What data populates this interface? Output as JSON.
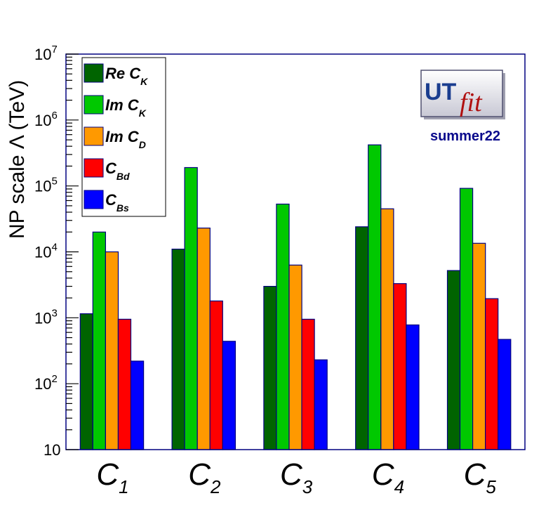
{
  "chart_data": {
    "type": "bar",
    "ylabel": "NP scale Λ (TeV)",
    "yscale": "log",
    "ylim": [
      10,
      10000000
    ],
    "y_ticks": [
      {
        "value": 10,
        "base": "10",
        "exp": ""
      },
      {
        "value": 100,
        "base": "10",
        "exp": "2"
      },
      {
        "value": 1000,
        "base": "10",
        "exp": "3"
      },
      {
        "value": 10000,
        "base": "10",
        "exp": "4"
      },
      {
        "value": 100000,
        "base": "10",
        "exp": "5"
      },
      {
        "value": 1000000,
        "base": "10",
        "exp": "6"
      },
      {
        "value": 10000000,
        "base": "10",
        "exp": "7"
      }
    ],
    "categories": [
      {
        "main": "C",
        "sub": "1"
      },
      {
        "main": "C",
        "sub": "2"
      },
      {
        "main": "C",
        "sub": "3"
      },
      {
        "main": "C",
        "sub": "4"
      },
      {
        "main": "C",
        "sub": "5"
      }
    ],
    "series": [
      {
        "label_main": "Re C",
        "label_sub": "K",
        "color": "#006400",
        "values": [
          1150,
          11000,
          3000,
          24000,
          5200
        ]
      },
      {
        "label_main": "Im C",
        "label_sub": "K",
        "color": "#00c800",
        "values": [
          20000,
          190000,
          53000,
          420000,
          92000
        ]
      },
      {
        "label_main": "Im C",
        "label_sub": "D",
        "color": "#ff9900",
        "values": [
          10000,
          23000,
          6300,
          45000,
          13500
        ]
      },
      {
        "label_main": "C",
        "label_sub": "Bd",
        "color": "#ff0000",
        "values": [
          950,
          1800,
          950,
          3300,
          1950
        ]
      },
      {
        "label_main": "C",
        "label_sub": "Bs",
        "color": "#0000ff",
        "values": [
          220,
          440,
          230,
          780,
          470
        ]
      }
    ],
    "grid": false,
    "legend": "top-left"
  },
  "logo": {
    "text_ut": "UT",
    "text_fit": "fit",
    "caption": "summer22"
  }
}
